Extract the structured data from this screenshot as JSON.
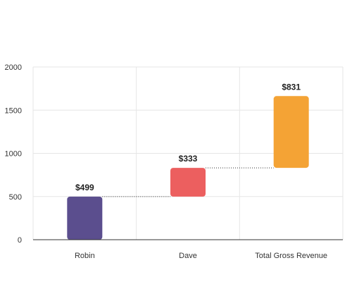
{
  "chart_data": {
    "type": "bar",
    "subtype": "waterfall",
    "title": "",
    "xlabel": "",
    "ylabel": "",
    "ylim": [
      0,
      2000
    ],
    "yticks": [
      0,
      500,
      1000,
      1500,
      2000
    ],
    "grid": true,
    "legend": "none",
    "categories": [
      "Robin",
      "Dave",
      "Total Gross Revenue"
    ],
    "bars": [
      {
        "category": "Robin",
        "start": 0,
        "end": 499,
        "label": "$499",
        "color": "#5b4e8e"
      },
      {
        "category": "Dave",
        "start": 499,
        "end": 832,
        "label": "$333",
        "color": "#ec5f5f"
      },
      {
        "category": "Total Gross Revenue",
        "start": 832,
        "end": 1663,
        "label": "$831",
        "color": "#f4a335"
      }
    ],
    "connector_color": "#333333",
    "grid_color": "#e6e6e6",
    "axis_color": "#333333"
  }
}
